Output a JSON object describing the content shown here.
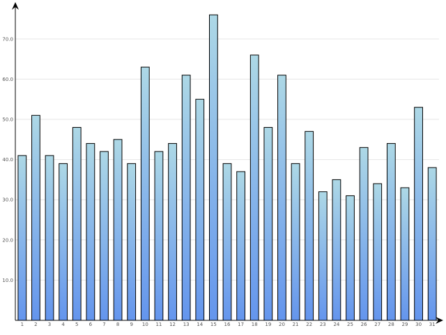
{
  "chart_data": {
    "type": "bar",
    "title": "",
    "xlabel": "",
    "ylabel": "",
    "categories": [
      "1",
      "2",
      "3",
      "4",
      "5",
      "6",
      "7",
      "8",
      "9",
      "10",
      "11",
      "12",
      "13",
      "14",
      "15",
      "16",
      "17",
      "18",
      "19",
      "20",
      "21",
      "22",
      "23",
      "24",
      "25",
      "26",
      "27",
      "28",
      "29",
      "30",
      "31"
    ],
    "values": [
      41,
      51,
      41,
      39,
      48,
      44,
      42,
      45,
      39,
      63,
      42,
      44,
      61,
      55,
      76,
      39,
      37,
      66,
      48,
      61,
      39,
      47,
      32,
      35,
      31,
      43,
      34,
      44,
      33,
      53,
      38
    ],
    "ylim": [
      0,
      79
    ],
    "y_ticks": [
      "10.0",
      "20.0",
      "30.0",
      "40.0",
      "50.0",
      "60.0",
      "70.0"
    ],
    "grid": true,
    "legend": "none",
    "colors": {
      "bar_top": "#add8e6",
      "bar_bottom": "#6495ed",
      "bar_stroke": "#000000",
      "grid": "#e6e6e6",
      "axis": "#000000"
    }
  }
}
